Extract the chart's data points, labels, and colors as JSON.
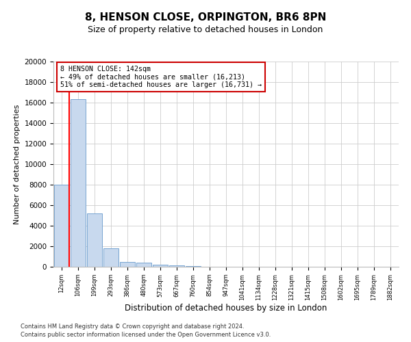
{
  "title1": "8, HENSON CLOSE, ORPINGTON, BR6 8PN",
  "title2": "Size of property relative to detached houses in London",
  "xlabel": "Distribution of detached houses by size in London",
  "ylabel": "Number of detached properties",
  "categories": [
    "12sqm",
    "106sqm",
    "199sqm",
    "293sqm",
    "386sqm",
    "480sqm",
    "573sqm",
    "667sqm",
    "760sqm",
    "854sqm",
    "947sqm",
    "1041sqm",
    "1134sqm",
    "1228sqm",
    "1321sqm",
    "1415sqm",
    "1508sqm",
    "1602sqm",
    "1695sqm",
    "1789sqm",
    "1882sqm"
  ],
  "bar_heights": [
    8000,
    16300,
    5200,
    1800,
    500,
    380,
    200,
    130,
    80,
    0,
    0,
    0,
    0,
    0,
    0,
    0,
    0,
    0,
    0,
    0,
    0
  ],
  "bar_color": "#c8d9ee",
  "bar_edge_color": "#6699cc",
  "annotation_title": "8 HENSON CLOSE: 142sqm",
  "annotation_line1": "← 49% of detached houses are smaller (16,213)",
  "annotation_line2": "51% of semi-detached houses are larger (16,731) →",
  "annotation_box_color": "#ffffff",
  "annotation_box_edge": "#cc0000",
  "footer1": "Contains HM Land Registry data © Crown copyright and database right 2024.",
  "footer2": "Contains public sector information licensed under the Open Government Licence v3.0.",
  "ylim": [
    0,
    20000
  ],
  "yticks": [
    0,
    2000,
    4000,
    6000,
    8000,
    10000,
    12000,
    14000,
    16000,
    18000,
    20000
  ],
  "grid_color": "#cccccc",
  "background_color": "#ffffff",
  "title1_fontsize": 11,
  "title2_fontsize": 9
}
